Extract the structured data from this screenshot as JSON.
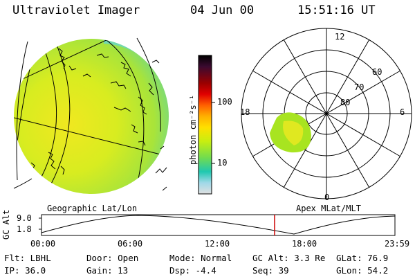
{
  "header": {
    "title": "Ultraviolet Imager",
    "date": "04 Jun 00",
    "time": "15:51:16 UT"
  },
  "panels": {
    "geographic_label": "Geographic Lat/Lon",
    "apex_label": "Apex MLat/MLT"
  },
  "colorbar": {
    "unit_label": "photon cm⁻²s⁻¹",
    "ticks": [
      {
        "label": "100",
        "value": 100
      },
      {
        "label": "10",
        "value": 10
      }
    ],
    "colors": [
      "#000000",
      "#3a0a30",
      "#7a0000",
      "#d00000",
      "#ff5a00",
      "#ffa000",
      "#ffd800",
      "#d8f000",
      "#a0e820",
      "#50d860",
      "#20c8c0",
      "#9ad8e0",
      "#d8d8d8"
    ]
  },
  "polar_plot": {
    "mlt_labels": {
      "top": "12",
      "left": "18",
      "right": "6",
      "bottom": "0"
    },
    "lat_labels": [
      "60",
      "70",
      "80"
    ]
  },
  "altitude_plot": {
    "axis_label": "GC Alt",
    "y_ticks": [
      "9.0",
      "1.8"
    ],
    "x_ticks": [
      "00:00",
      "06:00",
      "12:00",
      "18:00",
      "23:59"
    ],
    "current_time_marker_color": "#cc0000"
  },
  "status": {
    "filter": "Flt: LBHL",
    "ip": "IP: 36.0",
    "door": "Door: Open",
    "gain": "Gain: 13",
    "mode": "Mode: Normal",
    "dsp": "Dsp:   -4.4",
    "gc_alt": "GC Alt: 3.3 Re",
    "seq": "Seq: 39",
    "glat": "GLat: 76.9",
    "glon": "GLon:  54.2"
  }
}
